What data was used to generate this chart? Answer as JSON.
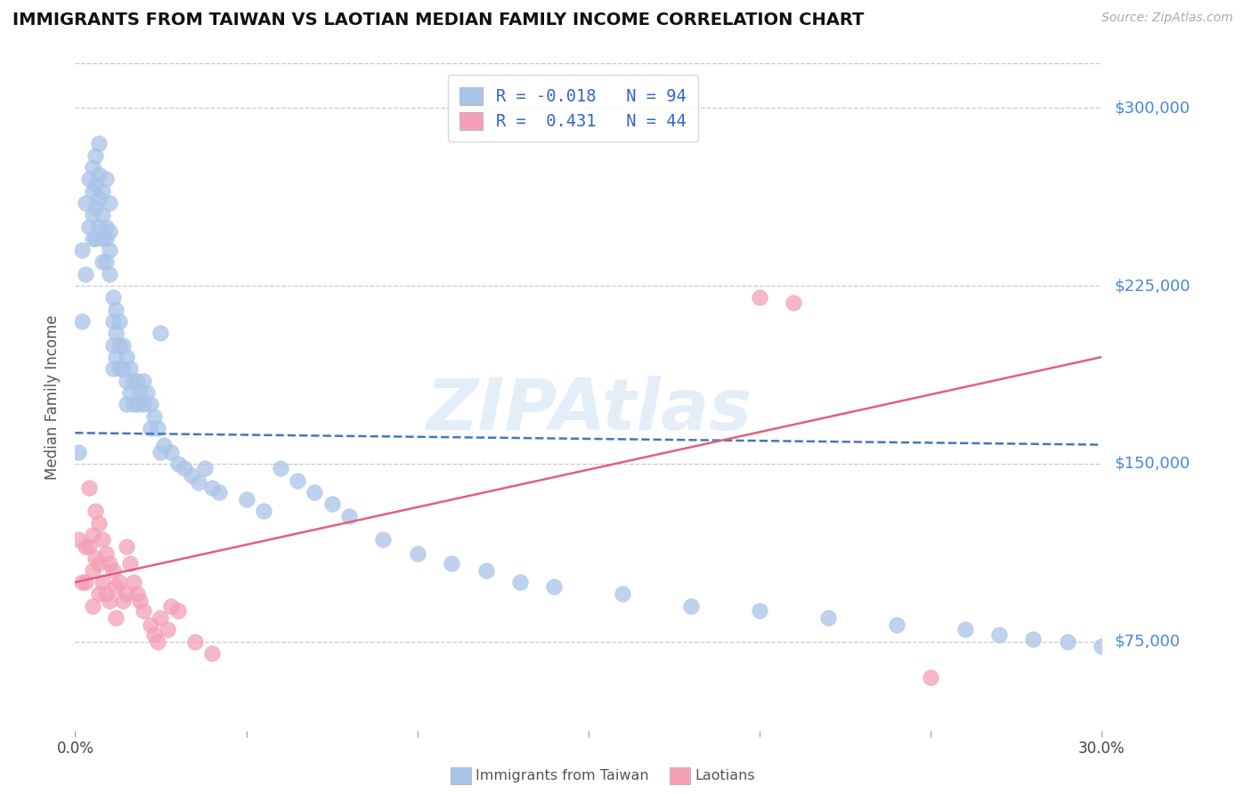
{
  "title": "IMMIGRANTS FROM TAIWAN VS LAOTIAN MEDIAN FAMILY INCOME CORRELATION CHART",
  "source_text": "Source: ZipAtlas.com",
  "ylabel": "Median Family Income",
  "xlim": [
    0.0,
    0.3
  ],
  "ylim": [
    37500,
    318750
  ],
  "yticks": [
    75000,
    150000,
    225000,
    300000
  ],
  "ytick_labels": [
    "$75,000",
    "$150,000",
    "$225,000",
    "$300,000"
  ],
  "xticks": [
    0.0,
    0.05,
    0.1,
    0.15,
    0.2,
    0.25,
    0.3
  ],
  "xtick_labels": [
    "0.0%",
    "",
    "",
    "",
    "",
    "",
    "30.0%"
  ],
  "background_color": "#ffffff",
  "grid_color": "#c8c8c8",
  "taiwan_color": "#aac4e8",
  "laotian_color": "#f4a0b5",
  "taiwan_line_color": "#4477bb",
  "laotian_line_color": "#e06080",
  "taiwan_R": -0.018,
  "taiwan_N": 94,
  "laotian_R": 0.431,
  "laotian_N": 44,
  "watermark_text": "ZIPAtlas",
  "taiwan_label": "Immigrants from Taiwan",
  "laotian_label": "Laotians",
  "taiwan_trend_y0": 163000,
  "taiwan_trend_y1": 158000,
  "laotian_trend_y0": 100000,
  "laotian_trend_y1": 195000,
  "taiwan_scatter_x": [
    0.001,
    0.002,
    0.002,
    0.003,
    0.003,
    0.004,
    0.004,
    0.005,
    0.005,
    0.005,
    0.005,
    0.006,
    0.006,
    0.006,
    0.006,
    0.007,
    0.007,
    0.007,
    0.007,
    0.008,
    0.008,
    0.008,
    0.008,
    0.009,
    0.009,
    0.009,
    0.009,
    0.01,
    0.01,
    0.01,
    0.01,
    0.011,
    0.011,
    0.011,
    0.011,
    0.012,
    0.012,
    0.012,
    0.013,
    0.013,
    0.013,
    0.014,
    0.014,
    0.015,
    0.015,
    0.015,
    0.016,
    0.016,
    0.017,
    0.017,
    0.018,
    0.018,
    0.019,
    0.02,
    0.02,
    0.021,
    0.022,
    0.022,
    0.023,
    0.024,
    0.025,
    0.025,
    0.026,
    0.028,
    0.03,
    0.032,
    0.034,
    0.036,
    0.038,
    0.04,
    0.042,
    0.05,
    0.055,
    0.06,
    0.065,
    0.07,
    0.075,
    0.08,
    0.09,
    0.1,
    0.11,
    0.12,
    0.13,
    0.14,
    0.16,
    0.18,
    0.2,
    0.22,
    0.24,
    0.26,
    0.27,
    0.28,
    0.29,
    0.3
  ],
  "taiwan_scatter_y": [
    155000,
    240000,
    210000,
    260000,
    230000,
    270000,
    250000,
    275000,
    265000,
    255000,
    245000,
    280000,
    268000,
    258000,
    245000,
    285000,
    272000,
    262000,
    250000,
    265000,
    255000,
    245000,
    235000,
    270000,
    250000,
    245000,
    235000,
    260000,
    248000,
    240000,
    230000,
    220000,
    210000,
    200000,
    190000,
    215000,
    205000,
    195000,
    210000,
    200000,
    190000,
    200000,
    190000,
    195000,
    185000,
    175000,
    190000,
    180000,
    185000,
    175000,
    185000,
    175000,
    180000,
    185000,
    175000,
    180000,
    175000,
    165000,
    170000,
    165000,
    205000,
    155000,
    158000,
    155000,
    150000,
    148000,
    145000,
    142000,
    148000,
    140000,
    138000,
    135000,
    130000,
    148000,
    143000,
    138000,
    133000,
    128000,
    118000,
    112000,
    108000,
    105000,
    100000,
    98000,
    95000,
    90000,
    88000,
    85000,
    82000,
    80000,
    78000,
    76000,
    75000,
    73000
  ],
  "laotian_scatter_x": [
    0.001,
    0.002,
    0.003,
    0.003,
    0.004,
    0.004,
    0.005,
    0.005,
    0.005,
    0.006,
    0.006,
    0.007,
    0.007,
    0.007,
    0.008,
    0.008,
    0.009,
    0.009,
    0.01,
    0.01,
    0.011,
    0.012,
    0.012,
    0.013,
    0.014,
    0.015,
    0.015,
    0.016,
    0.017,
    0.018,
    0.019,
    0.02,
    0.022,
    0.023,
    0.024,
    0.025,
    0.027,
    0.028,
    0.03,
    0.035,
    0.04,
    0.2,
    0.21,
    0.25
  ],
  "laotian_scatter_y": [
    118000,
    100000,
    115000,
    100000,
    140000,
    115000,
    120000,
    105000,
    90000,
    130000,
    110000,
    125000,
    108000,
    95000,
    118000,
    100000,
    112000,
    95000,
    108000,
    92000,
    105000,
    98000,
    85000,
    100000,
    92000,
    115000,
    95000,
    108000,
    100000,
    95000,
    92000,
    88000,
    82000,
    78000,
    75000,
    85000,
    80000,
    90000,
    88000,
    75000,
    70000,
    220000,
    218000,
    60000
  ]
}
